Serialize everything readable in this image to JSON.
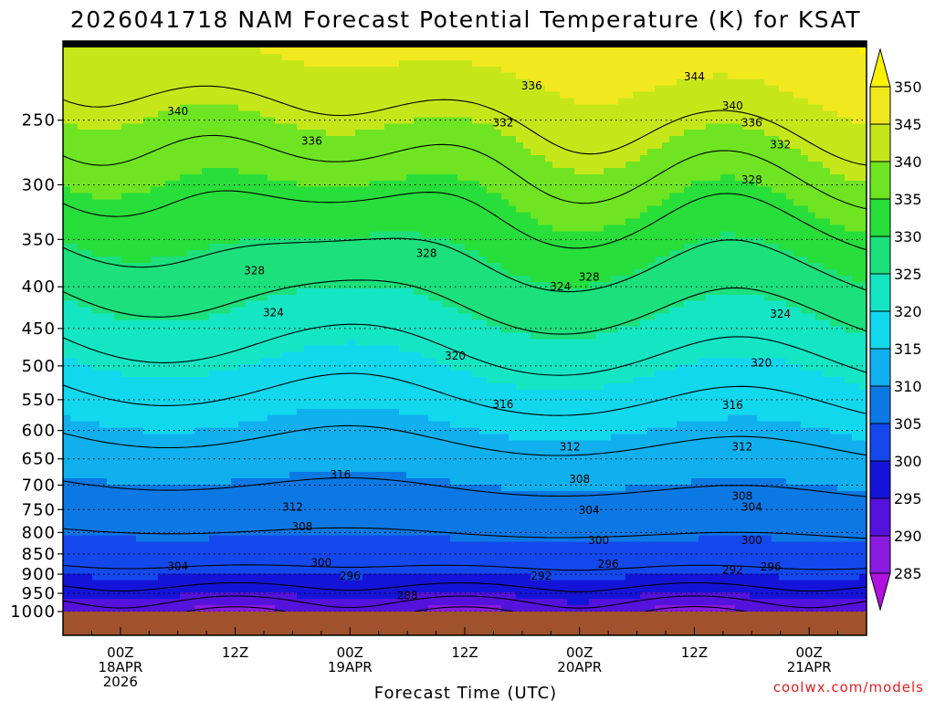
{
  "chart_data": {
    "type": "heatmap",
    "title": "2026041718 NAM Forecast Potential Temperature (K) for KSAT",
    "xlabel": "Forecast Time (UTC)",
    "ylabel": "",
    "credit": "coolwx.com/models",
    "y_ticks": [
      "250",
      "300",
      "350",
      "400",
      "450",
      "500",
      "550",
      "600",
      "650",
      "700",
      "750",
      "800",
      "850",
      "900",
      "950",
      "1000"
    ],
    "y_scale": "log",
    "y_range": [
      1000,
      200
    ],
    "x_range_hours": [
      0,
      84
    ],
    "x_ticks": [
      {
        "hour": 6,
        "lines": [
          "00Z",
          "18APR",
          "2026"
        ]
      },
      {
        "hour": 18,
        "lines": [
          "12Z"
        ]
      },
      {
        "hour": 30,
        "lines": [
          "00Z",
          "19APR"
        ]
      },
      {
        "hour": 42,
        "lines": [
          "12Z"
        ]
      },
      {
        "hour": 54,
        "lines": [
          "00Z",
          "20APR"
        ]
      },
      {
        "hour": 66,
        "lines": [
          "12Z"
        ]
      },
      {
        "hour": 78,
        "lines": [
          "00Z",
          "21APR"
        ]
      }
    ],
    "colorbar": {
      "ticks": [
        "350",
        "345",
        "340",
        "335",
        "330",
        "325",
        "320",
        "315",
        "310",
        "305",
        "300",
        "295",
        "290",
        "285"
      ],
      "colors": [
        "#fff200",
        "#f2e81e",
        "#c5e71a",
        "#6fe422",
        "#27de3a",
        "#1be07b",
        "#14e6c3",
        "#12d8ee",
        "#10b0ee",
        "#0c78e4",
        "#1448ec",
        "#1414d8",
        "#5512dc",
        "#8a1ae0",
        "#b012e0"
      ]
    },
    "contour_levels": [
      288,
      292,
      296,
      300,
      304,
      308,
      312,
      316,
      320,
      324,
      328,
      332,
      336,
      340,
      344
    ],
    "contour_labels": [
      {
        "value": "344",
        "hour": 66.0,
        "p": 221
      },
      {
        "value": "340",
        "hour": 12.0,
        "p": 244
      },
      {
        "value": "340",
        "hour": 70.0,
        "p": 240
      },
      {
        "value": "336",
        "hour": 26.0,
        "p": 265
      },
      {
        "value": "336",
        "hour": 49.0,
        "p": 227
      },
      {
        "value": "336",
        "hour": 72.0,
        "p": 252
      },
      {
        "value": "332",
        "hour": 46.0,
        "p": 252
      },
      {
        "value": "332",
        "hour": 75.0,
        "p": 268
      },
      {
        "value": "328",
        "hour": 72.0,
        "p": 296
      },
      {
        "value": "328",
        "hour": 20.0,
        "p": 382
      },
      {
        "value": "328",
        "hour": 38.0,
        "p": 364
      },
      {
        "value": "328",
        "hour": 55.0,
        "p": 389
      },
      {
        "value": "324",
        "hour": 52.0,
        "p": 400
      },
      {
        "value": "324",
        "hour": 22.0,
        "p": 430
      },
      {
        "value": "324",
        "hour": 75.0,
        "p": 432
      },
      {
        "value": "320",
        "hour": 41.0,
        "p": 486
      },
      {
        "value": "320",
        "hour": 73.0,
        "p": 496
      },
      {
        "value": "316",
        "hour": 46.0,
        "p": 557
      },
      {
        "value": "316",
        "hour": 70.0,
        "p": 559
      },
      {
        "value": "316",
        "hour": 29.0,
        "p": 680
      },
      {
        "value": "312",
        "hour": 53.0,
        "p": 628
      },
      {
        "value": "312",
        "hour": 71.0,
        "p": 628
      },
      {
        "value": "312",
        "hour": 24.0,
        "p": 745
      },
      {
        "value": "308",
        "hour": 54.0,
        "p": 688
      },
      {
        "value": "308",
        "hour": 71.0,
        "p": 722
      },
      {
        "value": "308",
        "hour": 25.0,
        "p": 787
      },
      {
        "value": "304",
        "hour": 55.0,
        "p": 751
      },
      {
        "value": "304",
        "hour": 72.0,
        "p": 745
      },
      {
        "value": "304",
        "hour": 12.0,
        "p": 880
      },
      {
        "value": "300",
        "hour": 56.0,
        "p": 818
      },
      {
        "value": "300",
        "hour": 72.0,
        "p": 818
      },
      {
        "value": "300",
        "hour": 27.0,
        "p": 871
      },
      {
        "value": "296",
        "hour": 57.0,
        "p": 875
      },
      {
        "value": "296",
        "hour": 74.0,
        "p": 882
      },
      {
        "value": "296",
        "hour": 30.0,
        "p": 904
      },
      {
        "value": "292",
        "hour": 50.0,
        "p": 904
      },
      {
        "value": "292",
        "hour": 70.0,
        "p": 890
      },
      {
        "value": "288",
        "hour": 36.0,
        "p": 956
      }
    ]
  }
}
